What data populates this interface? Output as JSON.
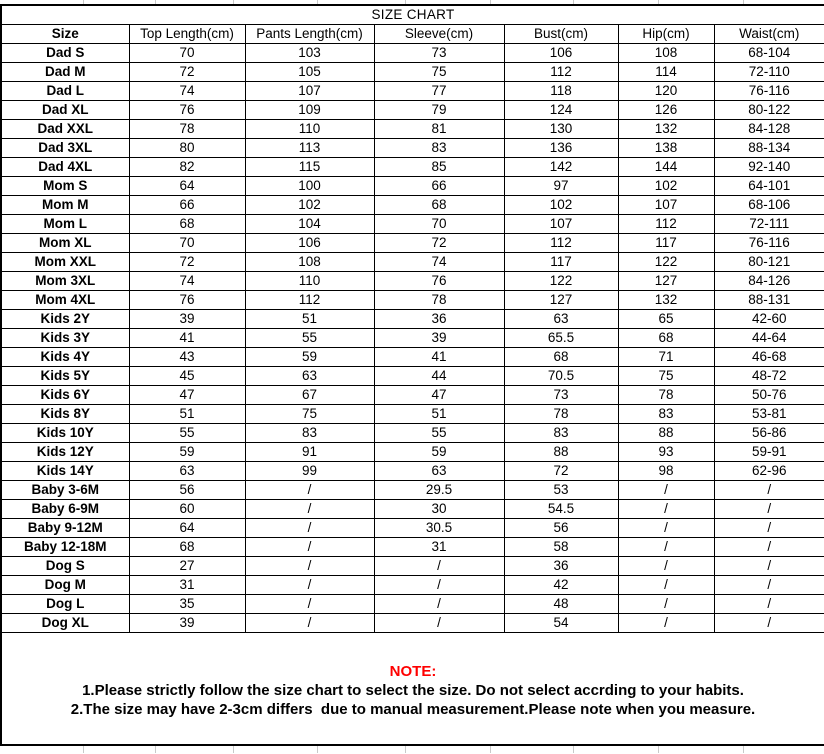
{
  "title": "SIZE CHART",
  "columns": [
    "Size",
    "Top Length(cm)",
    "Pants Length(cm)",
    "Sleeve(cm)",
    "Bust(cm)",
    "Hip(cm)",
    "Waist(cm)"
  ],
  "rows": [
    {
      "size": "Dad S",
      "values": [
        "70",
        "103",
        "73",
        "106",
        "108",
        "68-104"
      ]
    },
    {
      "size": "Dad M",
      "values": [
        "72",
        "105",
        "75",
        "112",
        "114",
        "72-110"
      ]
    },
    {
      "size": "Dad L",
      "values": [
        "74",
        "107",
        "77",
        "118",
        "120",
        "76-116"
      ]
    },
    {
      "size": "Dad XL",
      "values": [
        "76",
        "109",
        "79",
        "124",
        "126",
        "80-122"
      ]
    },
    {
      "size": "Dad XXL",
      "values": [
        "78",
        "110",
        "81",
        "130",
        "132",
        "84-128"
      ]
    },
    {
      "size": "Dad 3XL",
      "values": [
        "80",
        "113",
        "83",
        "136",
        "138",
        "88-134"
      ]
    },
    {
      "size": "Dad 4XL",
      "values": [
        "82",
        "115",
        "85",
        "142",
        "144",
        "92-140"
      ]
    },
    {
      "size": "Mom S",
      "values": [
        "64",
        "100",
        "66",
        "97",
        "102",
        "64-101"
      ]
    },
    {
      "size": "Mom M",
      "values": [
        "66",
        "102",
        "68",
        "102",
        "107",
        "68-106"
      ]
    },
    {
      "size": "Mom L",
      "values": [
        "68",
        "104",
        "70",
        "107",
        "112",
        "72-111"
      ]
    },
    {
      "size": "Mom XL",
      "values": [
        "70",
        "106",
        "72",
        "112",
        "117",
        "76-116"
      ]
    },
    {
      "size": "Mom XXL",
      "values": [
        "72",
        "108",
        "74",
        "117",
        "122",
        "80-121"
      ]
    },
    {
      "size": "Mom 3XL",
      "values": [
        "74",
        "110",
        "76",
        "122",
        "127",
        "84-126"
      ]
    },
    {
      "size": "Mom 4XL",
      "values": [
        "76",
        "112",
        "78",
        "127",
        "132",
        "88-131"
      ]
    },
    {
      "size": "Kids 2Y",
      "values": [
        "39",
        "51",
        "36",
        "63",
        "65",
        "42-60"
      ]
    },
    {
      "size": "Kids 3Y",
      "values": [
        "41",
        "55",
        "39",
        "65.5",
        "68",
        "44-64"
      ]
    },
    {
      "size": "Kids 4Y",
      "values": [
        "43",
        "59",
        "41",
        "68",
        "71",
        "46-68"
      ]
    },
    {
      "size": "Kids 5Y",
      "values": [
        "45",
        "63",
        "44",
        "70.5",
        "75",
        "48-72"
      ]
    },
    {
      "size": "Kids 6Y",
      "values": [
        "47",
        "67",
        "47",
        "73",
        "78",
        "50-76"
      ]
    },
    {
      "size": "Kids 8Y",
      "values": [
        "51",
        "75",
        "51",
        "78",
        "83",
        "53-81"
      ]
    },
    {
      "size": "Kids 10Y",
      "values": [
        "55",
        "83",
        "55",
        "83",
        "88",
        "56-86"
      ]
    },
    {
      "size": "Kids 12Y",
      "values": [
        "59",
        "91",
        "59",
        "88",
        "93",
        "59-91"
      ]
    },
    {
      "size": "Kids 14Y",
      "values": [
        "63",
        "99",
        "63",
        "72",
        "98",
        "62-96"
      ]
    },
    {
      "size": "Baby 3-6M",
      "values": [
        "56",
        "/",
        "29.5",
        "53",
        "/",
        "/"
      ]
    },
    {
      "size": "Baby 6-9M",
      "values": [
        "60",
        "/",
        "30",
        "54.5",
        "/",
        "/"
      ]
    },
    {
      "size": "Baby 9-12M",
      "values": [
        "64",
        "/",
        "30.5",
        "56",
        "/",
        "/"
      ]
    },
    {
      "size": "Baby 12-18M",
      "values": [
        "68",
        "/",
        "31",
        "58",
        "/",
        "/"
      ]
    },
    {
      "size": "Dog S",
      "values": [
        "27",
        "/",
        "/",
        "36",
        "/",
        "/"
      ]
    },
    {
      "size": "Dog M",
      "values": [
        "31",
        "/",
        "/",
        "42",
        "/",
        "/"
      ]
    },
    {
      "size": "Dog L",
      "values": [
        "35",
        "/",
        "/",
        "48",
        "/",
        "/"
      ]
    },
    {
      "size": "Dog XL",
      "values": [
        "39",
        "/",
        "/",
        "54",
        "/",
        "/"
      ]
    }
  ],
  "note": {
    "label": "NOTE:",
    "lines": [
      "1.Please strictly follow the size chart to select the size. Do not select accrding to your habits.",
      "2.The size may have 2-3cm differs  due to manual measurement.Please note when you measure."
    ]
  },
  "colors": {
    "note_label": "#ff0000",
    "table_border": "#000000",
    "text": "#000000",
    "faint_gridline": "#c9c9c9"
  }
}
